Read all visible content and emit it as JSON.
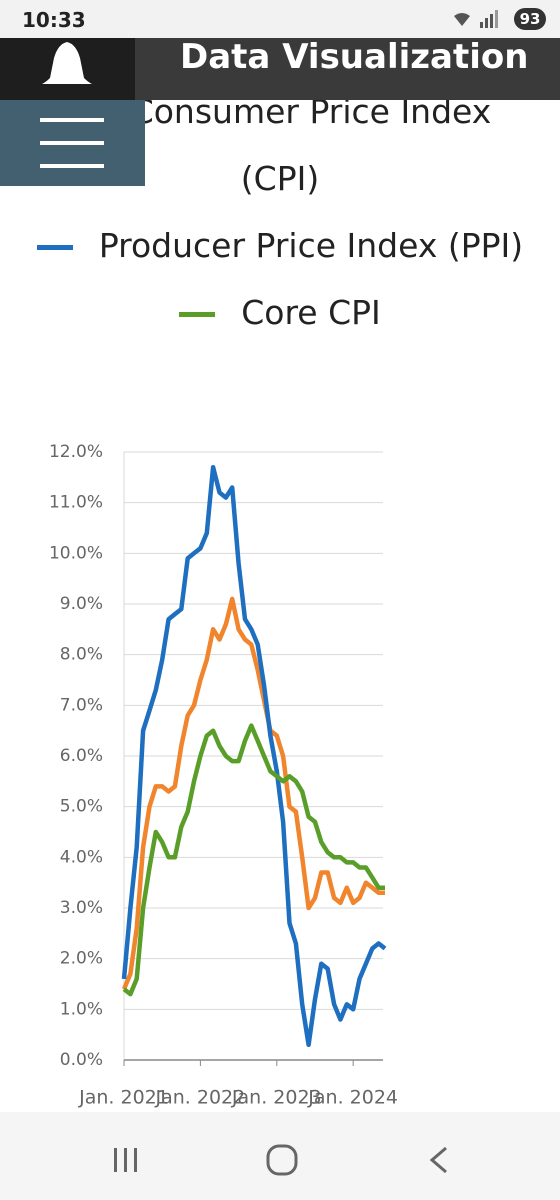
{
  "status_bar": {
    "time": "10:33",
    "battery": "93"
  },
  "header": {
    "title": "Data Visualization"
  },
  "chart_data": {
    "type": "line",
    "categories": [
      "Jan. 2021",
      null,
      null,
      null,
      null,
      null,
      null,
      null,
      null,
      null,
      null,
      null,
      "Jan. 2022",
      null,
      null,
      null,
      null,
      null,
      null,
      null,
      null,
      null,
      null,
      null,
      "Jan. 2023",
      null,
      null,
      null,
      null,
      null,
      null,
      null,
      null,
      null,
      null,
      null,
      "Jan. 2024",
      null,
      null,
      null,
      null,
      null
    ],
    "series": [
      {
        "name": "Consumer Price Index (CPI)",
        "color": "#f0852d",
        "values": [
          1.4,
          1.7,
          2.6,
          4.2,
          5.0,
          5.4,
          5.4,
          5.3,
          5.4,
          6.2,
          6.8,
          7.0,
          7.5,
          7.9,
          8.5,
          8.3,
          8.6,
          9.1,
          8.5,
          8.3,
          8.2,
          7.7,
          7.1,
          6.5,
          6.4,
          6.0,
          5.0,
          4.9,
          4.0,
          3.0,
          3.2,
          3.7,
          3.7,
          3.2,
          3.1,
          3.4,
          3.1,
          3.2,
          3.5,
          3.4,
          3.3,
          3.3
        ]
      },
      {
        "name": "Producer Price Index (PPI)",
        "color": "#1f6fc0",
        "values": [
          1.6,
          3.0,
          4.2,
          6.5,
          6.9,
          7.3,
          7.9,
          8.7,
          8.8,
          8.9,
          9.9,
          10.0,
          10.1,
          10.4,
          11.7,
          11.2,
          11.1,
          11.3,
          9.8,
          8.7,
          8.5,
          8.2,
          7.4,
          6.4,
          5.7,
          4.7,
          2.7,
          2.3,
          1.1,
          0.3,
          1.2,
          1.9,
          1.8,
          1.1,
          0.8,
          1.1,
          1.0,
          1.6,
          1.9,
          2.2,
          2.3,
          2.2
        ]
      },
      {
        "name": "Core CPI",
        "color": "#5a9e2a",
        "values": [
          1.4,
          1.3,
          1.6,
          3.0,
          3.8,
          4.5,
          4.3,
          4.0,
          4.0,
          4.6,
          4.9,
          5.5,
          6.0,
          6.4,
          6.5,
          6.2,
          6.0,
          5.9,
          5.9,
          6.3,
          6.6,
          6.3,
          6.0,
          5.7,
          5.6,
          5.5,
          5.6,
          5.5,
          5.3,
          4.8,
          4.7,
          4.3,
          4.1,
          4.0,
          4.0,
          3.9,
          3.9,
          3.8,
          3.8,
          3.6,
          3.4,
          3.4
        ]
      }
    ],
    "ylim": [
      0,
      12
    ],
    "yticks": [
      {
        "value": 0,
        "label": "0.0%"
      },
      {
        "value": 1,
        "label": "1.0%"
      },
      {
        "value": 2,
        "label": "2.0%"
      },
      {
        "value": 3,
        "label": "3.0%"
      },
      {
        "value": 4,
        "label": "4.0%"
      },
      {
        "value": 5,
        "label": "5.0%"
      },
      {
        "value": 6,
        "label": "6.0%"
      },
      {
        "value": 7,
        "label": "7.0%"
      },
      {
        "value": 8,
        "label": "8.0%"
      },
      {
        "value": 9,
        "label": "9.0%"
      },
      {
        "value": 10,
        "label": "10.0%"
      },
      {
        "value": 11,
        "label": "11.0%"
      },
      {
        "value": 12,
        "label": "12.0%"
      }
    ],
    "grid": true
  }
}
